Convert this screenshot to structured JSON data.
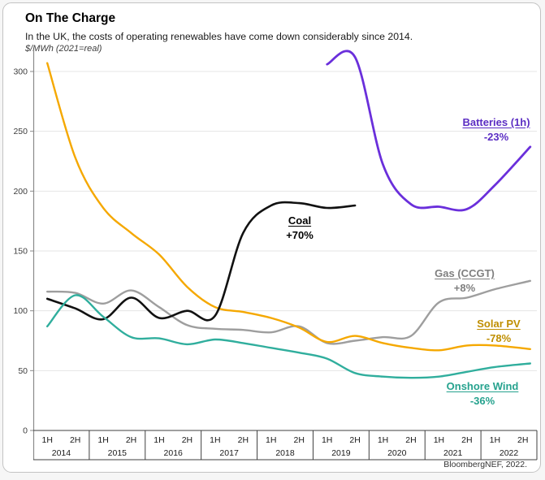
{
  "header": {
    "title": "On The Charge",
    "subtitle": "In the UK, the costs of operating renewables have come down considerably since 2014.",
    "unit": "$/MWh (2021=real)"
  },
  "source": "BloombergNEF, 2022.",
  "chart_data": {
    "type": "line",
    "title": "On The Charge",
    "subtitle": "In the UK, the costs of operating renewables have come down considerably since 2014.",
    "ylabel": "$/MWh (2021=real)",
    "ylim": [
      0,
      320
    ],
    "yticks": [
      0,
      50,
      100,
      150,
      200,
      250,
      300
    ],
    "grid": true,
    "legend_position": "inline-annotations",
    "years": [
      "2014",
      "2015",
      "2016",
      "2017",
      "2018",
      "2019",
      "2020",
      "2021",
      "2022"
    ],
    "half_labels": [
      "1H",
      "2H"
    ],
    "categories": [
      "1H 2014",
      "2H 2014",
      "1H 2015",
      "2H 2015",
      "1H 2016",
      "2H 2016",
      "1H 2017",
      "2H 2017",
      "1H 2018",
      "2H 2018",
      "1H 2019",
      "2H 2019",
      "1H 2020",
      "2H 2020",
      "1H 2021",
      "2H 2021",
      "1H 2022",
      "2H 2022"
    ],
    "series": [
      {
        "name": "Gas (CCGT)",
        "pct_label": "+8%",
        "color": "#9e9e9e",
        "label_color": "#7f7f7f",
        "start": 0,
        "values": [
          116,
          115,
          106,
          117,
          103,
          88,
          85,
          84,
          82,
          87,
          73,
          75,
          78,
          79,
          107,
          111,
          118,
          125
        ]
      },
      {
        "name": "Solar PV",
        "pct_label": "-78%",
        "color": "#f5a800",
        "label_color": "#bf8e00",
        "start": 0,
        "values": [
          307,
          228,
          186,
          165,
          147,
          120,
          103,
          99,
          94,
          86,
          74,
          79,
          73,
          69,
          67,
          71,
          71,
          68
        ]
      },
      {
        "name": "Coal",
        "pct_label": "+70%",
        "color": "#111111",
        "label_color": "#000000",
        "start": 0,
        "values": [
          110,
          102,
          93,
          111,
          94,
          100,
          96,
          165,
          188,
          190,
          186,
          188
        ]
      },
      {
        "name": "Onshore Wind",
        "pct_label": "-36%",
        "color": "#30ae9d",
        "label_color": "#26a28e",
        "start": 0,
        "values": [
          87,
          113,
          95,
          78,
          77,
          72,
          76,
          73,
          69,
          65,
          60,
          48,
          45,
          44,
          45,
          49,
          53,
          56
        ]
      },
      {
        "name": "Batteries (1h)",
        "pct_label": "-23%",
        "color": "#6a2fdb",
        "label_color": "#5b2dc3",
        "start": 10,
        "values": [
          306,
          312,
          222,
          189,
          187,
          185,
          205,
          237
        ]
      }
    ]
  }
}
